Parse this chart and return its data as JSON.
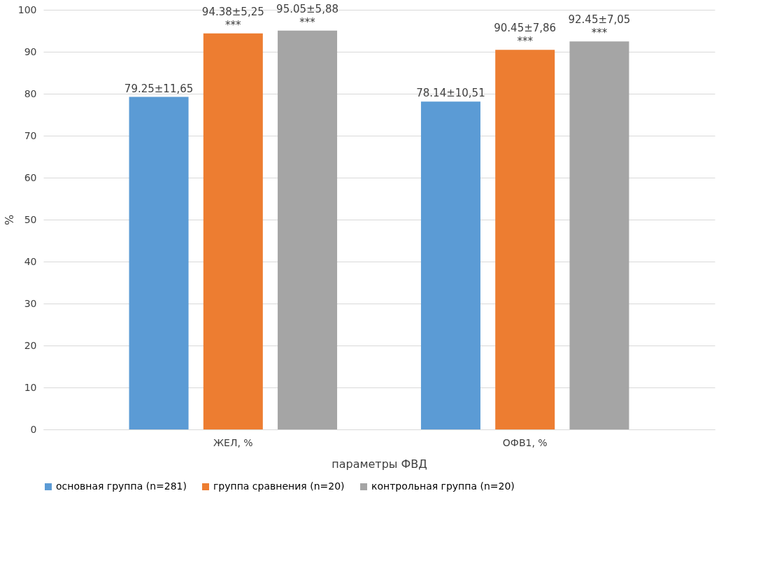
{
  "chart_data": {
    "type": "bar",
    "xlabel": "параметры ФВД",
    "ylabel": "%",
    "categories": [
      "ЖЕЛ, %",
      "ОФВ1, %"
    ],
    "series": [
      {
        "name": "основная группа (n=281)",
        "color": "#5b9bd5",
        "values": [
          79.25,
          78.14
        ],
        "value_labels": [
          "79.25±11,65",
          "78.14±10,51"
        ]
      },
      {
        "name": "группа сравнения (n=20)",
        "color": "#ed7d31",
        "values": [
          94.38,
          90.45
        ],
        "value_labels": [
          "94.38±5,25\n***",
          "90.45±7,86\n***"
        ]
      },
      {
        "name": "контрольная группа (n=20)",
        "color": "#a5a5a5",
        "values": [
          95.05,
          92.45
        ],
        "value_labels": [
          "95.05±5,88\n***",
          "92.45±7,05\n***"
        ]
      }
    ],
    "ylim": [
      0,
      100
    ],
    "yticks": [
      0,
      10,
      20,
      30,
      40,
      50,
      60,
      70,
      80,
      90,
      100
    ],
    "grid": "y",
    "legend": "bottom"
  }
}
